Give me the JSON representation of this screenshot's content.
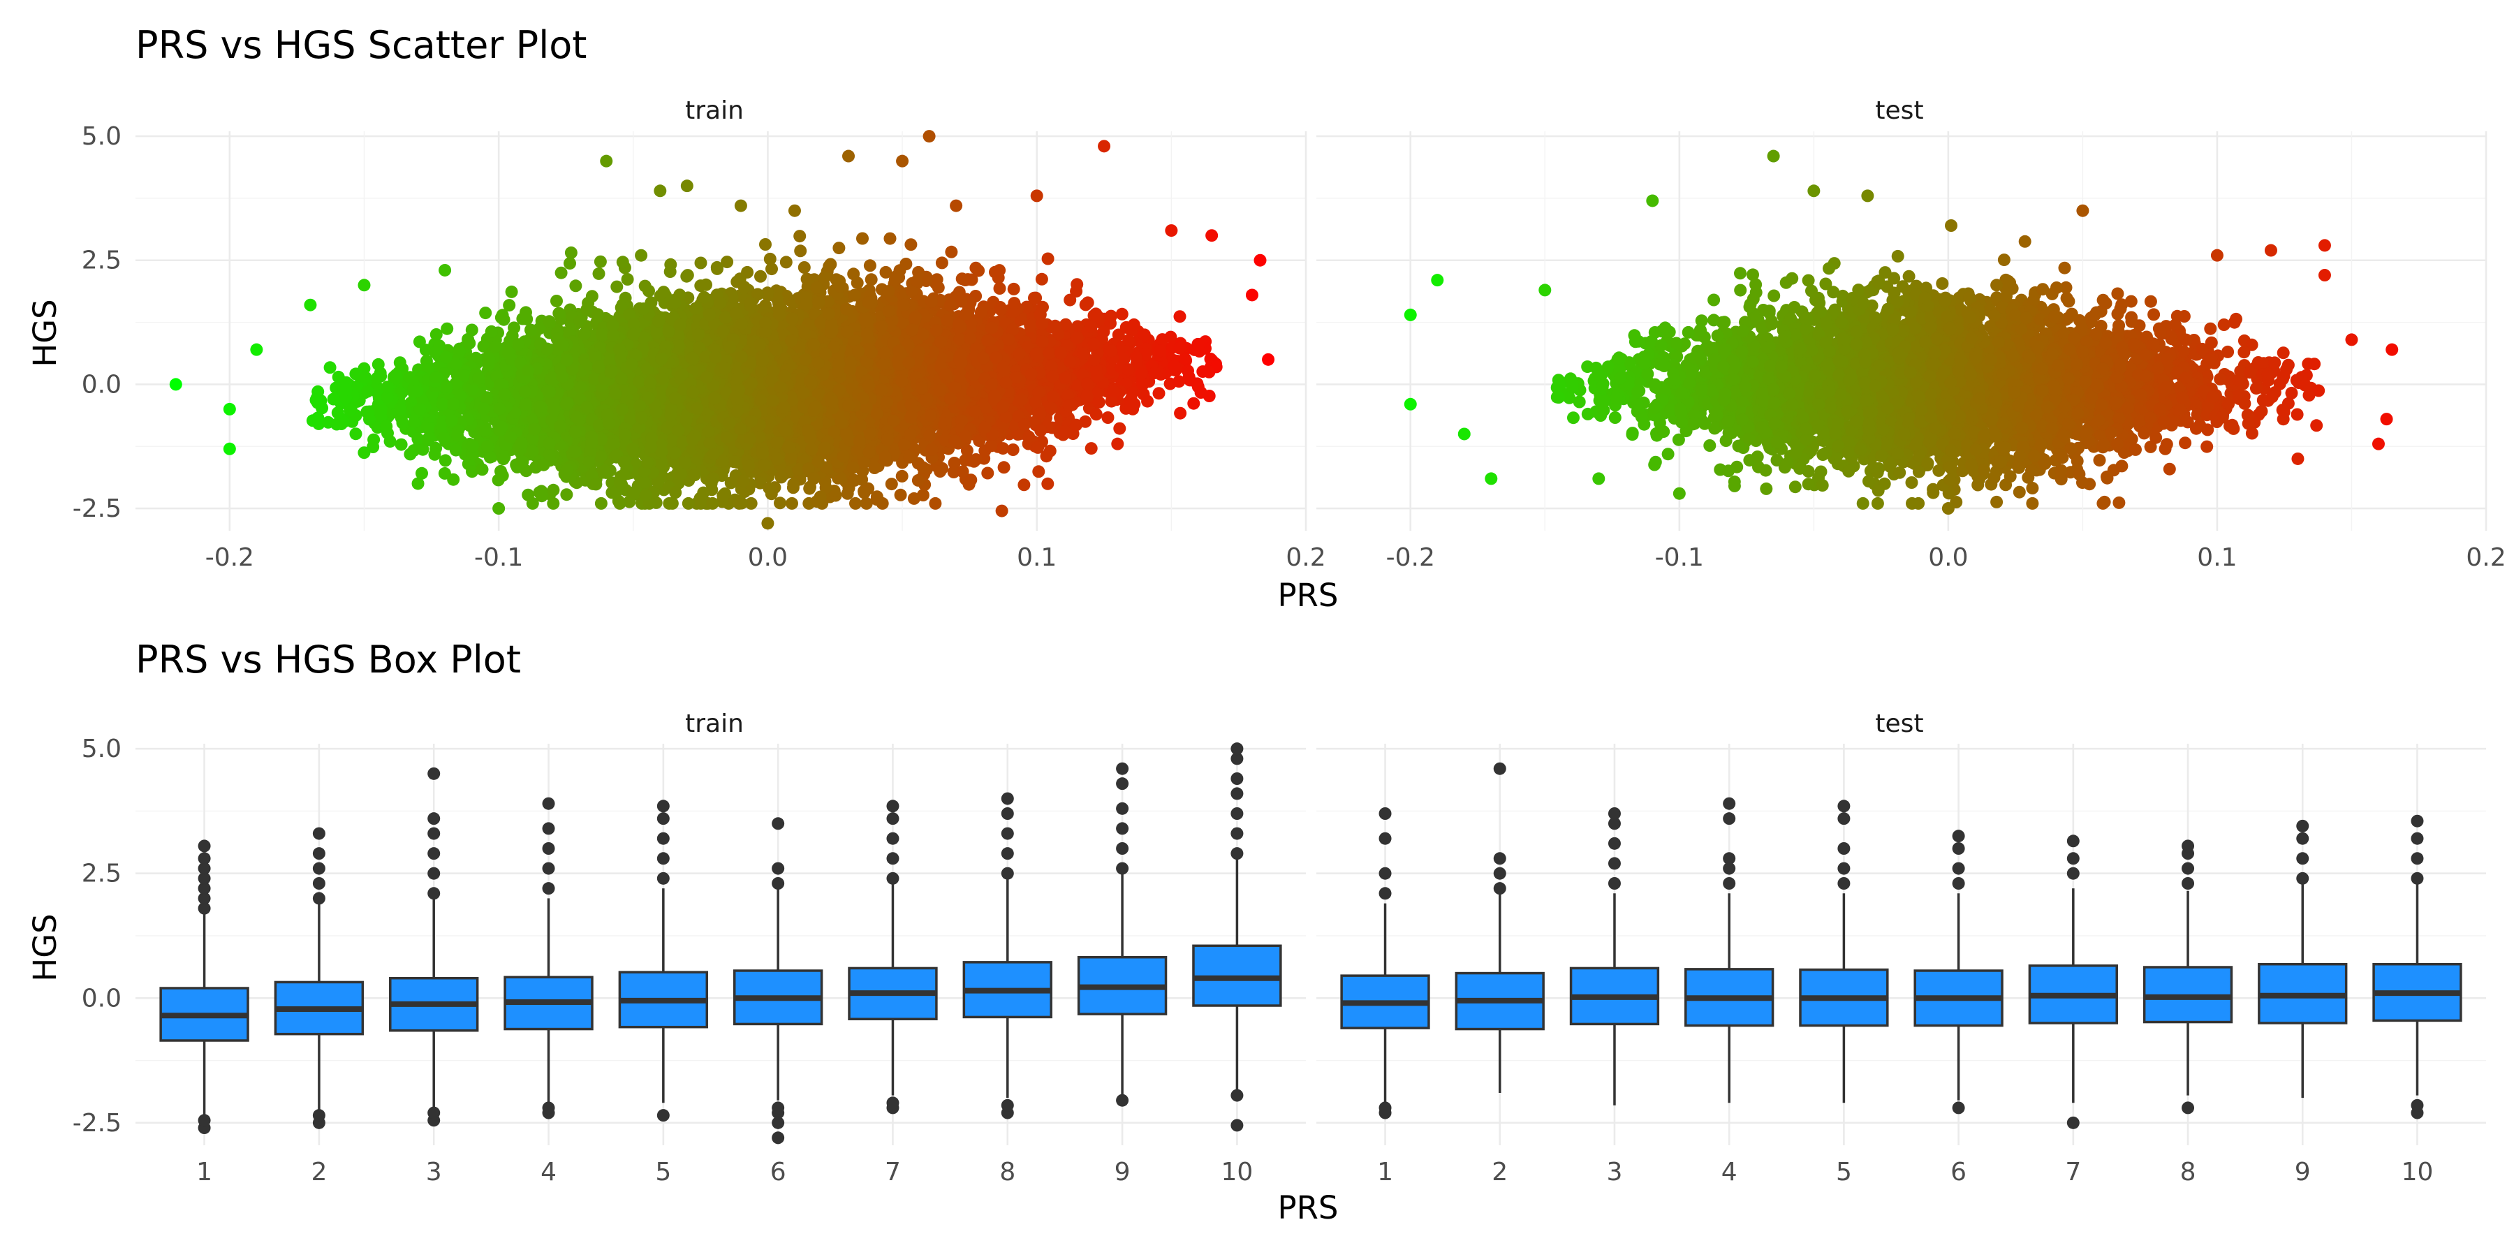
{
  "figure": {
    "scatter_title": "PRS vs HGS Scatter Plot",
    "box_title": "PRS vs HGS Box Plot",
    "xlabel": "PRS",
    "ylabel": "HGS",
    "panel_labels": [
      "train",
      "test"
    ]
  },
  "colors": {
    "low": "#00ff00",
    "high": "#ff0000",
    "box_fill": "#1e90ff",
    "box_line": "#333333",
    "grid": "#ebebeb"
  },
  "chart_data": [
    {
      "type": "scatter",
      "title": "PRS vs HGS Scatter Plot",
      "xlabel": "PRS",
      "ylabel": "HGS",
      "facets": [
        "train",
        "test"
      ],
      "xlim": [
        -0.235,
        0.2
      ],
      "ylim": [
        -2.95,
        5.1
      ],
      "x_ticks": [
        -0.2,
        -0.1,
        0.0,
        0.1,
        0.2
      ],
      "x_tick_labels": [
        "-0.2",
        "-0.1",
        "0.0",
        "0.1",
        "0.2"
      ],
      "y_ticks": [
        -2.5,
        0.0,
        2.5,
        5.0
      ],
      "y_tick_labels": [
        "-2.5",
        "0.0",
        "2.5",
        "5.0"
      ],
      "color_by": "PRS",
      "color_scale": [
        "#00ff00",
        "#ff0000"
      ],
      "grid": true,
      "series": [
        {
          "facet": "train",
          "x": [
            -0.22,
            -0.2,
            -0.2,
            -0.19,
            -0.17,
            -0.15,
            -0.13,
            -0.12,
            -0.1,
            -0.06,
            -0.055,
            -0.04,
            -0.03,
            0.0,
            0.01,
            0.03,
            0.05,
            0.06,
            0.1,
            0.125,
            0.15,
            0.165,
            0.18,
            0.183,
            0.186,
            0.087,
            -0.01,
            0.07,
            0.13,
            0.14
          ],
          "y": [
            0.0,
            -0.5,
            -1.3,
            0.7,
            1.6,
            2.0,
            -2.0,
            2.3,
            -2.5,
            4.5,
            -2.4,
            3.9,
            4.0,
            -2.8,
            3.5,
            4.6,
            4.5,
            5.0,
            3.8,
            4.8,
            3.1,
            3.0,
            1.8,
            2.5,
            0.5,
            -2.55,
            3.6,
            3.6,
            -1.2,
            1.0
          ],
          "cloud": {
            "x_range": [
              -0.15,
              0.15
            ],
            "y_center": 0.0,
            "y_sd": 0.9,
            "approx_points": 9000
          }
        },
        {
          "facet": "test",
          "x": [
            -0.2,
            -0.2,
            -0.19,
            -0.18,
            -0.17,
            -0.15,
            -0.13,
            -0.11,
            -0.1,
            -0.065,
            -0.05,
            -0.03,
            0.0,
            0.05,
            0.1,
            0.12,
            0.14,
            0.15,
            0.16,
            0.163,
            0.165,
            0.14,
            0.13
          ],
          "y": [
            1.4,
            -0.4,
            2.1,
            -1.0,
            -1.9,
            1.9,
            -1.9,
            3.7,
            -2.2,
            4.6,
            3.9,
            3.8,
            -2.5,
            3.5,
            2.6,
            2.7,
            2.8,
            0.9,
            -1.2,
            -0.7,
            0.7,
            2.2,
            -1.5
          ],
          "cloud": {
            "x_range": [
              -0.13,
              0.12
            ],
            "y_center": 0.0,
            "y_sd": 0.85,
            "approx_points": 5000
          }
        }
      ]
    },
    {
      "type": "box",
      "title": "PRS vs HGS Box Plot",
      "xlabel": "PRS",
      "ylabel": "HGS",
      "facets": [
        "train",
        "test"
      ],
      "categories": [
        "1",
        "2",
        "3",
        "4",
        "5",
        "6",
        "7",
        "8",
        "9",
        "10"
      ],
      "ylim": [
        -2.95,
        5.1
      ],
      "y_ticks": [
        -2.5,
        0.0,
        2.5,
        5.0
      ],
      "y_tick_labels": [
        "-2.5",
        "0.0",
        "2.5",
        "5.0"
      ],
      "grid": true,
      "series": [
        {
          "facet": "train",
          "boxes": [
            {
              "q1": -0.85,
              "median": -0.35,
              "q3": 0.2,
              "wlo": -2.35,
              "whi": 1.7,
              "outliers": [
                -2.6,
                -2.45,
                1.8,
                2.0,
                2.2,
                2.4,
                2.6,
                2.8,
                3.05
              ]
            },
            {
              "q1": -0.72,
              "median": -0.22,
              "q3": 0.32,
              "wlo": -2.25,
              "whi": 1.9,
              "outliers": [
                -2.5,
                -2.35,
                2.0,
                2.3,
                2.6,
                2.9,
                3.3
              ]
            },
            {
              "q1": -0.65,
              "median": -0.12,
              "q3": 0.4,
              "wlo": -2.2,
              "whi": 2.0,
              "outliers": [
                -2.45,
                -2.3,
                2.1,
                2.5,
                2.9,
                3.3,
                3.6,
                4.5
              ]
            },
            {
              "q1": -0.62,
              "median": -0.08,
              "q3": 0.42,
              "wlo": -2.1,
              "whi": 2.0,
              "outliers": [
                -2.3,
                -2.2,
                2.2,
                2.6,
                3.0,
                3.4,
                3.9
              ]
            },
            {
              "q1": -0.58,
              "median": -0.05,
              "q3": 0.52,
              "wlo": -2.1,
              "whi": 2.2,
              "outliers": [
                -2.35,
                2.4,
                2.8,
                3.2,
                3.6,
                3.85
              ]
            },
            {
              "q1": -0.52,
              "median": 0.0,
              "q3": 0.55,
              "wlo": -2.05,
              "whi": 2.2,
              "outliers": [
                -2.8,
                -2.5,
                -2.3,
                -2.2,
                2.3,
                2.6,
                3.5
              ]
            },
            {
              "q1": -0.42,
              "median": 0.1,
              "q3": 0.6,
              "wlo": -1.95,
              "whi": 2.3,
              "outliers": [
                -2.2,
                -2.1,
                2.4,
                2.8,
                3.2,
                3.6,
                3.85
              ]
            },
            {
              "q1": -0.38,
              "median": 0.15,
              "q3": 0.72,
              "wlo": -2.0,
              "whi": 2.4,
              "outliers": [
                -2.3,
                -2.15,
                2.5,
                2.9,
                3.3,
                3.7,
                4.0
              ]
            },
            {
              "q1": -0.32,
              "median": 0.22,
              "q3": 0.82,
              "wlo": -1.95,
              "whi": 2.5,
              "outliers": [
                -2.05,
                2.6,
                3.0,
                3.4,
                3.8,
                4.3,
                4.6
              ]
            },
            {
              "q1": -0.15,
              "median": 0.4,
              "q3": 1.05,
              "wlo": -1.9,
              "whi": 2.8,
              "outliers": [
                -2.55,
                -1.95,
                2.9,
                3.3,
                3.7,
                4.1,
                4.4,
                4.8,
                5.0
              ]
            }
          ]
        },
        {
          "facet": "test",
          "boxes": [
            {
              "q1": -0.6,
              "median": -0.1,
              "q3": 0.45,
              "wlo": -2.1,
              "whi": 1.9,
              "outliers": [
                -2.3,
                -2.2,
                2.1,
                2.5,
                3.2,
                3.7
              ]
            },
            {
              "q1": -0.62,
              "median": -0.05,
              "q3": 0.5,
              "wlo": -1.9,
              "whi": 2.1,
              "outliers": [
                2.2,
                2.5,
                2.8,
                4.6
              ]
            },
            {
              "q1": -0.52,
              "median": 0.02,
              "q3": 0.6,
              "wlo": -2.15,
              "whi": 2.1,
              "outliers": [
                2.3,
                2.7,
                3.1,
                3.5,
                3.7
              ]
            },
            {
              "q1": -0.55,
              "median": 0.0,
              "q3": 0.58,
              "wlo": -2.1,
              "whi": 2.1,
              "outliers": [
                2.3,
                2.6,
                2.8,
                3.6,
                3.9
              ]
            },
            {
              "q1": -0.55,
              "median": 0.0,
              "q3": 0.57,
              "wlo": -2.1,
              "whi": 2.1,
              "outliers": [
                2.3,
                2.6,
                3.0,
                3.6,
                3.85
              ]
            },
            {
              "q1": -0.55,
              "median": 0.0,
              "q3": 0.55,
              "wlo": -2.05,
              "whi": 2.1,
              "outliers": [
                -2.2,
                2.3,
                2.6,
                3.0,
                3.25
              ]
            },
            {
              "q1": -0.5,
              "median": 0.05,
              "q3": 0.65,
              "wlo": -2.1,
              "whi": 2.2,
              "outliers": [
                -2.5,
                2.5,
                2.8,
                3.15
              ]
            },
            {
              "q1": -0.48,
              "median": 0.02,
              "q3": 0.62,
              "wlo": -1.95,
              "whi": 2.15,
              "outliers": [
                -2.2,
                2.3,
                2.6,
                2.9,
                3.05
              ]
            },
            {
              "q1": -0.5,
              "median": 0.05,
              "q3": 0.68,
              "wlo": -2.0,
              "whi": 2.3,
              "outliers": [
                2.4,
                2.8,
                3.2,
                3.45
              ]
            },
            {
              "q1": -0.45,
              "median": 0.1,
              "q3": 0.68,
              "wlo": -1.95,
              "whi": 2.3,
              "outliers": [
                -2.3,
                -2.15,
                2.4,
                2.8,
                3.2,
                3.55
              ]
            }
          ]
        }
      ]
    }
  ]
}
